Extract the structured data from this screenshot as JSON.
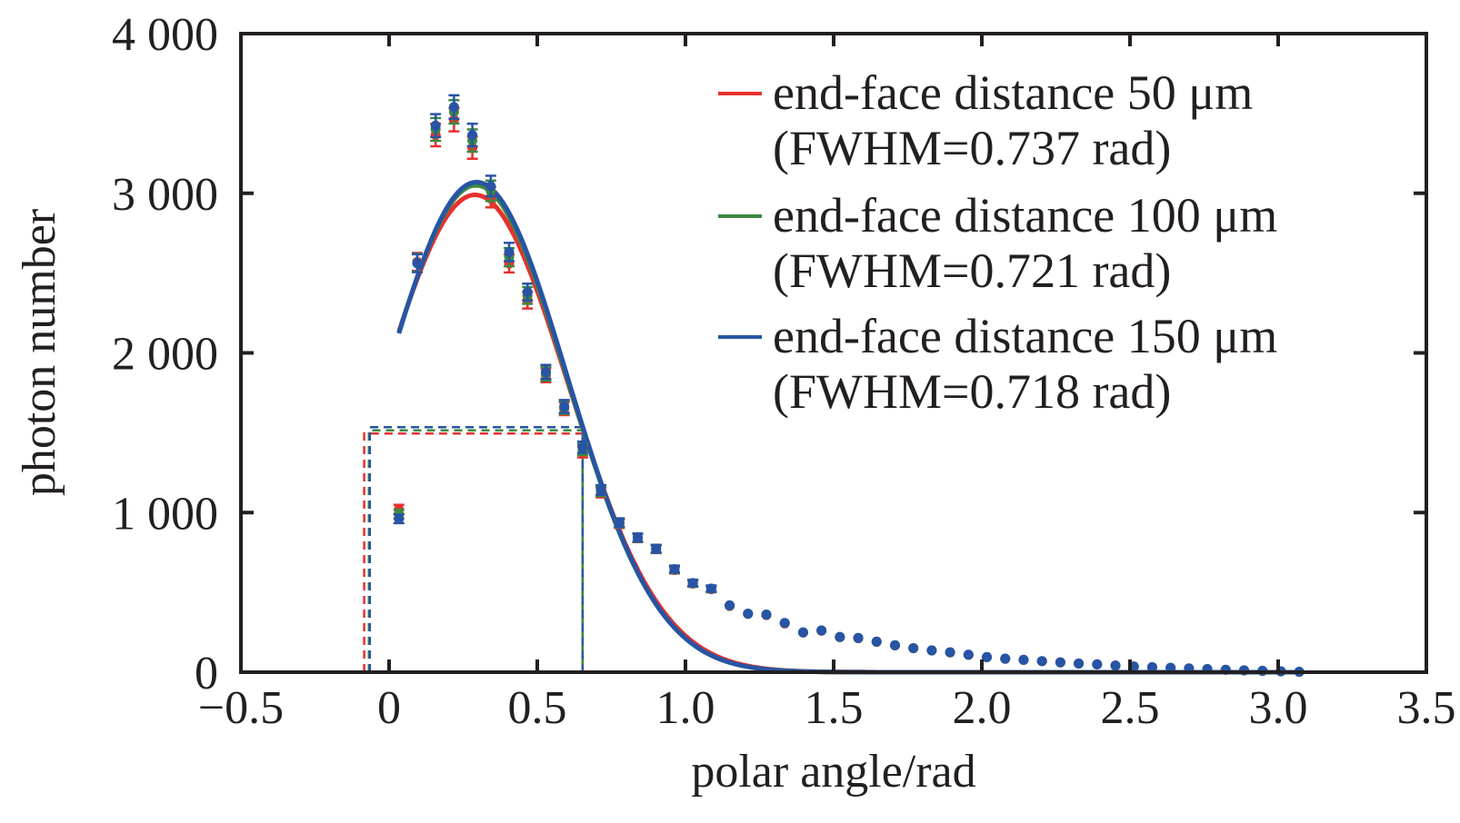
{
  "chart_data": {
    "type": "scatter",
    "title": "",
    "xlabel": "polar angle/rad",
    "ylabel": "photon number",
    "xlim": [
      -0.5,
      3.5
    ],
    "ylim": [
      0,
      4000
    ],
    "xticks": [
      -0.5,
      0,
      0.5,
      1.0,
      1.5,
      2.0,
      2.5,
      3.0,
      3.5
    ],
    "xtick_labels": [
      "−0.5",
      "0",
      "0.5",
      "1.0",
      "1.5",
      "2.0",
      "2.5",
      "3.0",
      "3.5"
    ],
    "yticks": [
      0,
      1000,
      2000,
      3000,
      4000
    ],
    "ytick_labels": [
      "0",
      "1 000",
      "2 000",
      "3 000",
      "4 000"
    ],
    "grid": false,
    "legend_position": "top-right",
    "x_start": 0.033,
    "x_step": 0.062,
    "series": [
      {
        "name": "end-face distance 50 μm",
        "fwhm_label": "(FWHM=0.737 rad)",
        "color": "#e8302e",
        "fit": {
          "amplitude": 2990,
          "center": 0.29,
          "fwhm": 0.737
        },
        "fwhm_marker": {
          "x_left": -0.084,
          "x_right": 0.653,
          "y": 1495
        },
        "values": [
          1020,
          2570,
          3365,
          3460,
          3285,
          2975,
          2560,
          2330,
          1860,
          1650,
          1380,
          1125,
          930,
          840,
          770,
          640,
          555,
          520,
          415,
          365,
          358,
          305,
          248,
          260,
          220,
          213,
          190,
          168,
          150,
          136,
          124,
          109,
          94,
          84,
          77,
          69,
          61,
          54,
          49,
          41,
          35,
          31,
          27,
          23,
          19,
          15,
          11,
          8,
          5,
          2
        ]
      },
      {
        "name": "end-face distance 100 μm",
        "fwhm_label": "(FWHM=0.721 rad)",
        "color": "#3a8a3f",
        "fit": {
          "amplitude": 3050,
          "center": 0.293,
          "fwhm": 0.721
        },
        "fwhm_marker": {
          "x_left": -0.068,
          "x_right": 0.653,
          "y": 1515
        },
        "values": [
          990,
          2565,
          3400,
          3510,
          3330,
          3015,
          2600,
          2360,
          1870,
          1658,
          1395,
          1133,
          934,
          842,
          772,
          643,
          557,
          522,
          417,
          366,
          360,
          307,
          249,
          261,
          220,
          214,
          191,
          168,
          150,
          136,
          124,
          109,
          94,
          84,
          77,
          69,
          61,
          54,
          49,
          41,
          35,
          31,
          27,
          23,
          19,
          15,
          11,
          8,
          5,
          2
        ]
      },
      {
        "name": "end-face distance 150 μm",
        "fwhm_label": "(FWHM=0.718 rad)",
        "color": "#2754a5",
        "fit": {
          "amplitude": 3070,
          "center": 0.295,
          "fwhm": 0.718
        },
        "fwhm_marker": {
          "x_left": -0.065,
          "x_right": 0.653,
          "y": 1535
        },
        "values": [
          961,
          2562,
          3424,
          3540,
          3365,
          3045,
          2632,
          2381,
          1881,
          1665,
          1409,
          1141,
          937,
          844,
          774,
          646,
          559,
          524,
          419,
          367,
          361,
          309,
          250,
          262,
          221,
          215,
          192,
          169,
          151,
          137,
          125,
          110,
          95,
          85,
          78,
          70,
          62,
          55,
          50,
          42,
          36,
          32,
          28,
          24,
          20,
          16,
          12,
          9,
          6,
          3
        ]
      }
    ]
  }
}
